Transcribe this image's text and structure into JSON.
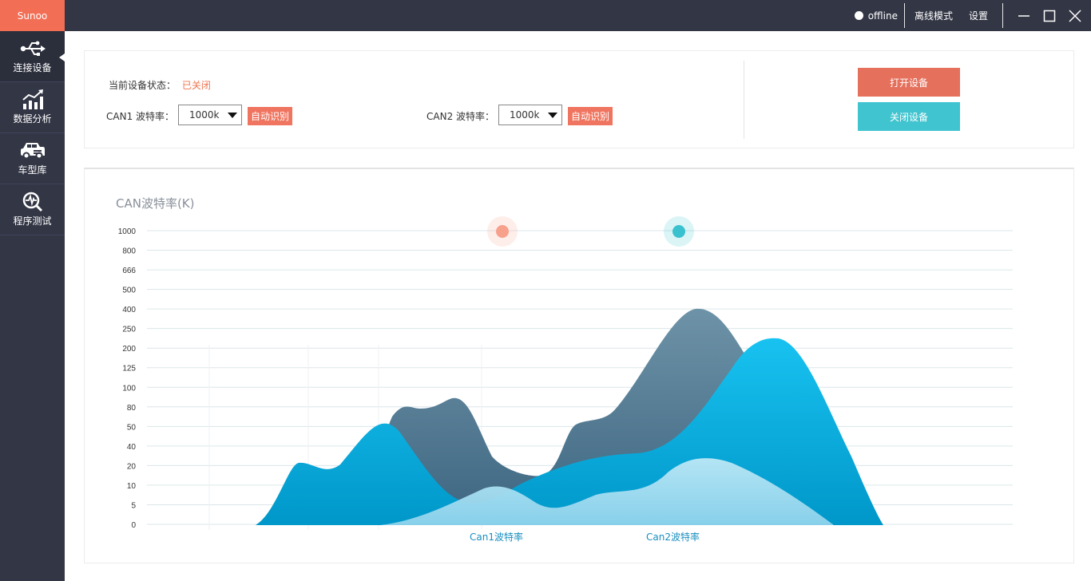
{
  "app": {
    "brand": "Sunoo",
    "status_text": "offline",
    "offline_mode": "离线模式",
    "settings": "设置"
  },
  "sidebar": {
    "items": [
      {
        "label": "连接设备",
        "icon": "usb-icon",
        "active": true
      },
      {
        "label": "数据分析",
        "icon": "bar-chart-trend-icon",
        "active": false
      },
      {
        "label": "车型库",
        "icon": "car-icon",
        "active": false
      },
      {
        "label": "程序测试",
        "icon": "magnifier-pulse-icon",
        "active": false
      }
    ]
  },
  "device": {
    "state_label": "当前设备状态：",
    "state_value": "已关闭",
    "can1_label": "CAN1 波特率：",
    "can1_value": "1000k",
    "can2_label": "CAN2 波特率：",
    "can2_value": "1000k",
    "auto_detect": "自动识别",
    "open_button": "打开设备",
    "close_button": "关闭设备"
  },
  "colors": {
    "brand": "#f26e55",
    "dark": "#333645",
    "open": "#e5705c",
    "close": "#40c4cf",
    "can1_back": "#406c87",
    "can2_front": "#0ba6d8",
    "light_area": "#a7dff1"
  },
  "chart_data": {
    "type": "area",
    "title": "CAN波特率(K)",
    "y_ticks": [
      "1000",
      "800",
      "666",
      "500",
      "400",
      "250",
      "200",
      "125",
      "100",
      "80",
      "50",
      "40",
      "20",
      "10",
      "5",
      "0"
    ],
    "y_scale": "categorical (ordered tick labels, evenly spaced)",
    "legend_placement": "top-center",
    "legend": [
      {
        "name": "Can1波特率",
        "color": "#f7a08c"
      },
      {
        "name": "Can2波特率",
        "color": "#3ac1cf"
      }
    ],
    "series": [
      {
        "name": "Can1波特率",
        "color": "#406c87",
        "peaks": [
          {
            "x": 0.41,
            "y": 80
          },
          {
            "x": 0.84,
            "y": 400
          }
        ]
      },
      {
        "name": "Can2波特率",
        "color": "#0ba6d8",
        "peaks": [
          {
            "x": 0.13,
            "y": 20
          },
          {
            "x": 0.4,
            "y": 50
          },
          {
            "x": 0.86,
            "y": 250
          }
        ]
      },
      {
        "name": "",
        "color": "#a7dff1",
        "peaks": [
          {
            "x": 0.57,
            "y": 10
          },
          {
            "x": 0.78,
            "y": 20
          }
        ]
      }
    ],
    "grid": true
  }
}
